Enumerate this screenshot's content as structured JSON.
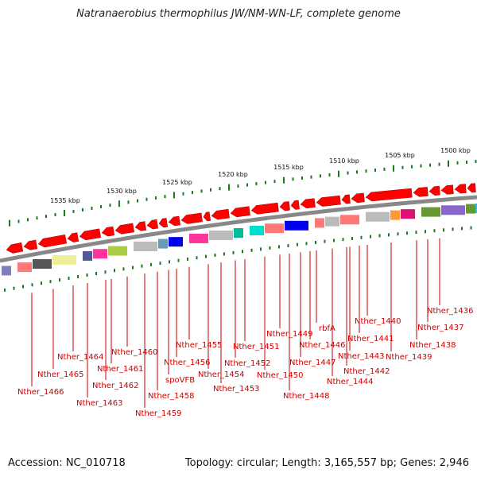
{
  "title": "Natranaerobius thermophilus JW/NM-WN-LF, complete genome",
  "footer": {
    "accession": "Accession: NC_010718",
    "topology": "Topology: circular; Length: 3,165,557 bp; Genes: 2,946"
  },
  "colors": {
    "backbone": "#888888",
    "forward_arrow": "#ff0000",
    "tick": "#1a7a1a",
    "label": "#cc0000",
    "leader": "#cc0000"
  },
  "scale_labels": [
    "1535 kbp",
    "1530 kbp",
    "1525 kbp",
    "1520 kbp",
    "1515 kbp",
    "1510 kbp",
    "1505 kbp",
    "1500 kbp"
  ],
  "genes": [
    "Nther_1466",
    "Nther_1465",
    "Nther_1464",
    "Nther_1463",
    "Nther_1462",
    "Nther_1461",
    "Nther_1460",
    "Nther_1459",
    "Nther_1458",
    "spoVFB",
    "Nther_1456",
    "Nther_1455",
    "Nther_1454",
    "Nther_1453",
    "Nther_1452",
    "Nther_1451",
    "Nther_1450",
    "Nther_1449",
    "Nther_1448",
    "Nther_1447",
    "Nther_1446",
    "rbfA",
    "Nther_1444",
    "Nther_1443",
    "Nther_1442",
    "Nther_1441",
    "Nther_1440",
    "Nther_1439",
    "Nther_1438",
    "Nther_1437",
    "Nther_1436"
  ],
  "domain_colors": [
    "#8080c0",
    "#ff7777",
    "#555555",
    "#eeee99",
    "#555599",
    "#ff3399",
    "#aacc44",
    "#bbbbbb",
    "#6699bb",
    "#0000ee",
    "#ff3399",
    "#bbbbbb",
    "#00bb99",
    "#00ddcc",
    "#ff7777",
    "#0000ee",
    "#ff7777",
    "#bbbbbb",
    "#ff7777",
    "#bbbbbb",
    "#ff9933",
    "#dd1177",
    "#669933",
    "#8866cc",
    "#669933",
    "#6655cc",
    "#8866cc",
    "#33bbdd"
  ]
}
